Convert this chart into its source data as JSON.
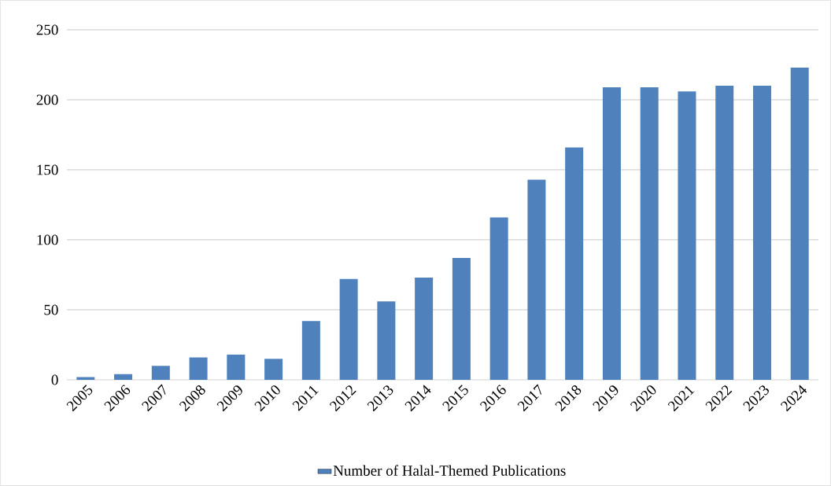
{
  "chart_data": {
    "type": "bar",
    "categories": [
      "2005",
      "2006",
      "2007",
      "2008",
      "2009",
      "2010",
      "2011",
      "2012",
      "2013",
      "2014",
      "2015",
      "2016",
      "2017",
      "2018",
      "2019",
      "2020",
      "2021",
      "2022",
      "2023",
      "2024"
    ],
    "series": [
      {
        "name": "Number of Halal-Themed Publications",
        "color": "#4f81bd",
        "values": [
          2,
          4,
          10,
          16,
          18,
          15,
          42,
          72,
          56,
          73,
          87,
          116,
          143,
          166,
          209,
          209,
          206,
          210,
          210,
          223
        ]
      }
    ],
    "ylim": [
      0,
      250
    ],
    "yticks": [
      0,
      50,
      100,
      150,
      200,
      250
    ],
    "grid": "y",
    "legend": "bottom"
  }
}
